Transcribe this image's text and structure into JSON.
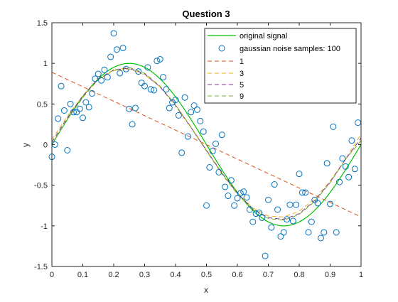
{
  "chart_data": {
    "type": "scatter",
    "title": "Question 3",
    "xlabel": "x",
    "ylabel": "y",
    "xlim": [
      0,
      1
    ],
    "ylim": [
      -1.5,
      1.5
    ],
    "xticks": [
      0,
      0.1,
      0.2,
      0.3,
      0.4,
      0.5,
      0.6,
      0.7,
      0.8,
      0.9,
      1
    ],
    "xtick_labels": [
      "0",
      "0.1",
      "0.2",
      "0.3",
      "0.4",
      "0.5",
      "0.6",
      "0.7",
      "0.8",
      "0.9",
      "1"
    ],
    "yticks": [
      -1.5,
      -1,
      -0.5,
      0,
      0.5,
      1,
      1.5
    ],
    "ytick_labels": [
      "-1.5",
      "-1",
      "-0.5",
      "0",
      "0.5",
      "1",
      "1.5"
    ],
    "grid": false,
    "legend_position": "top-right",
    "original_signal": {
      "name": "original signal",
      "color": "#00c000",
      "formula": "y = sin(2*pi*x)"
    },
    "noise_samples": {
      "name": "gaussian noise samples: 100",
      "color": "#0072bd",
      "points": [
        [
          0.0,
          -0.15
        ],
        [
          0.01,
          0.0
        ],
        [
          0.02,
          0.32
        ],
        [
          0.03,
          0.72
        ],
        [
          0.04,
          0.42
        ],
        [
          0.05,
          -0.07
        ],
        [
          0.06,
          0.5
        ],
        [
          0.07,
          0.4
        ],
        [
          0.08,
          0.4
        ],
        [
          0.09,
          0.44
        ],
        [
          0.1,
          0.33
        ],
        [
          0.11,
          0.52
        ],
        [
          0.12,
          0.46
        ],
        [
          0.13,
          0.63
        ],
        [
          0.14,
          0.81
        ],
        [
          0.15,
          0.87
        ],
        [
          0.16,
          0.79
        ],
        [
          0.17,
          0.92
        ],
        [
          0.18,
          0.83
        ],
        [
          0.19,
          1.08
        ],
        [
          0.2,
          1.37
        ],
        [
          0.21,
          1.17
        ],
        [
          0.22,
          0.88
        ],
        [
          0.23,
          1.19
        ],
        [
          0.24,
          0.93
        ],
        [
          0.25,
          0.44
        ],
        [
          0.26,
          0.25
        ],
        [
          0.27,
          0.45
        ],
        [
          0.28,
          0.9
        ],
        [
          0.29,
          0.76
        ],
        [
          0.3,
          0.72
        ],
        [
          0.31,
          0.95
        ],
        [
          0.32,
          0.68
        ],
        [
          0.33,
          0.67
        ],
        [
          0.34,
          1.03
        ],
        [
          0.35,
          1.05
        ],
        [
          0.36,
          0.83
        ],
        [
          0.37,
          0.68
        ],
        [
          0.38,
          0.45
        ],
        [
          0.39,
          0.52
        ],
        [
          0.4,
          0.55
        ],
        [
          0.41,
          0.36
        ],
        [
          0.42,
          -0.1
        ],
        [
          0.43,
          0.58
        ],
        [
          0.44,
          0.1
        ],
        [
          0.45,
          0.4
        ],
        [
          0.46,
          0.48
        ],
        [
          0.47,
          0.43
        ],
        [
          0.48,
          0.29
        ],
        [
          0.49,
          0.16
        ],
        [
          0.5,
          -0.75
        ],
        [
          0.51,
          -0.28
        ],
        [
          0.52,
          -0.08
        ],
        [
          0.53,
          0.01
        ],
        [
          0.54,
          -0.34
        ],
        [
          0.55,
          0.12
        ],
        [
          0.56,
          -0.52
        ],
        [
          0.57,
          -0.63
        ],
        [
          0.58,
          -0.44
        ],
        [
          0.59,
          -0.75
        ],
        [
          0.6,
          -0.66
        ],
        [
          0.61,
          -0.6
        ],
        [
          0.62,
          -0.58
        ],
        [
          0.63,
          -0.65
        ],
        [
          0.64,
          -0.8
        ],
        [
          0.65,
          -0.95
        ],
        [
          0.66,
          -0.85
        ],
        [
          0.67,
          -0.84
        ],
        [
          0.68,
          -0.9
        ],
        [
          0.69,
          -1.37
        ],
        [
          0.7,
          -0.68
        ],
        [
          0.71,
          -1.02
        ],
        [
          0.72,
          -0.49
        ],
        [
          0.73,
          -0.8
        ],
        [
          0.74,
          -1.13
        ],
        [
          0.75,
          -1.08
        ],
        [
          0.76,
          -0.92
        ],
        [
          0.77,
          -0.74
        ],
        [
          0.78,
          -0.94
        ],
        [
          0.79,
          -0.74
        ],
        [
          0.8,
          -0.36
        ],
        [
          0.81,
          -0.59
        ],
        [
          0.82,
          -0.59
        ],
        [
          0.83,
          -1.08
        ],
        [
          0.84,
          -0.95
        ],
        [
          0.85,
          -0.68
        ],
        [
          0.86,
          -0.72
        ],
        [
          0.87,
          -1.15
        ],
        [
          0.88,
          -1.08
        ],
        [
          0.89,
          -0.23
        ],
        [
          0.9,
          -0.73
        ],
        [
          0.91,
          0.22
        ],
        [
          0.92,
          -1.08
        ],
        [
          0.93,
          -0.46
        ],
        [
          0.94,
          -0.17
        ],
        [
          0.95,
          -0.27
        ],
        [
          0.96,
          -0.4
        ],
        [
          0.97,
          0.05
        ],
        [
          0.98,
          -0.3
        ],
        [
          0.99,
          0.27
        ]
      ]
    },
    "series": [
      {
        "name": "1",
        "color": "#d95319",
        "dash": "dashed",
        "x": [
          0,
          1
        ],
        "y": [
          0.89,
          -0.89
        ]
      },
      {
        "name": "3",
        "color": "#edb120",
        "dash": "dashed",
        "x": [
          0,
          0.05,
          0.1,
          0.15,
          0.2,
          0.25,
          0.3,
          0.35,
          0.4,
          0.45,
          0.5,
          0.55,
          0.6,
          0.65,
          0.7,
          0.75,
          0.8,
          0.85,
          0.9,
          0.95,
          1
        ],
        "y": [
          0.06,
          0.35,
          0.6,
          0.8,
          0.91,
          0.93,
          0.86,
          0.71,
          0.49,
          0.22,
          -0.07,
          -0.35,
          -0.6,
          -0.78,
          -0.88,
          -0.89,
          -0.82,
          -0.67,
          -0.45,
          -0.18,
          0.13
        ]
      },
      {
        "name": "5",
        "color": "#7e2f8e",
        "dash": "dashed",
        "x": [
          0,
          0.05,
          0.1,
          0.15,
          0.2,
          0.25,
          0.3,
          0.35,
          0.4,
          0.45,
          0.5,
          0.55,
          0.6,
          0.65,
          0.7,
          0.75,
          0.8,
          0.85,
          0.9,
          0.95,
          1
        ],
        "y": [
          0.03,
          0.33,
          0.6,
          0.81,
          0.92,
          0.94,
          0.87,
          0.71,
          0.48,
          0.21,
          -0.07,
          -0.35,
          -0.6,
          -0.79,
          -0.9,
          -0.92,
          -0.85,
          -0.69,
          -0.46,
          -0.18,
          0.08
        ]
      },
      {
        "name": "9",
        "color": "#77ac30",
        "dash": "dashed",
        "x": [
          0,
          0.05,
          0.1,
          0.15,
          0.2,
          0.25,
          0.3,
          0.35,
          0.4,
          0.45,
          0.5,
          0.55,
          0.6,
          0.65,
          0.7,
          0.75,
          0.8,
          0.85,
          0.9,
          0.95,
          1
        ],
        "y": [
          0.0,
          0.31,
          0.58,
          0.8,
          0.92,
          0.95,
          0.88,
          0.72,
          0.49,
          0.21,
          -0.08,
          -0.36,
          -0.61,
          -0.8,
          -0.91,
          -0.93,
          -0.86,
          -0.7,
          -0.47,
          -0.18,
          0.05
        ]
      }
    ]
  }
}
